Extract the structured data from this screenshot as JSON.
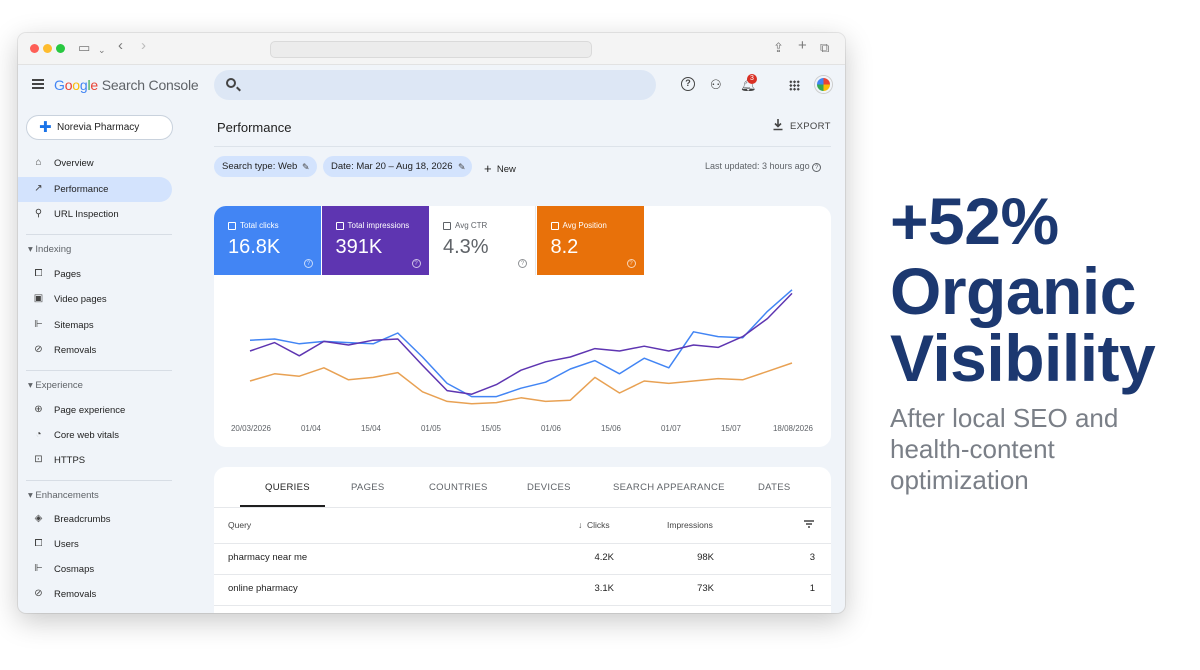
{
  "app": {
    "logo_parts": [
      "G",
      "o",
      "o",
      "g",
      "l",
      "e"
    ],
    "product_name": "Search Console",
    "notification_count": "3"
  },
  "sidebar": {
    "property": "Norevia Pharmacy",
    "items_top": [
      {
        "label": "Overview",
        "icon": "home-icon"
      },
      {
        "label": "Performance",
        "icon": "trending-icon",
        "active": true
      },
      {
        "label": "URL Inspection",
        "icon": "search-icon"
      }
    ],
    "indexing": {
      "title": "Indexing",
      "items": [
        {
          "label": "Pages",
          "icon": "pages-icon"
        },
        {
          "label": "Video pages",
          "icon": "video-icon"
        },
        {
          "label": "Sitemaps",
          "icon": "sitemap-icon"
        },
        {
          "label": "Removals",
          "icon": "removals-icon"
        }
      ]
    },
    "experience": {
      "title": "Experience",
      "items": [
        {
          "label": "Page experience",
          "icon": "plus-circle-icon"
        },
        {
          "label": "Core web vitals",
          "icon": "gauge-icon"
        },
        {
          "label": "HTTPS",
          "icon": "lock-icon"
        }
      ]
    },
    "enhancements": {
      "title": "Enhancements",
      "items": [
        {
          "label": "Breadcrumbs",
          "icon": "layers-icon"
        },
        {
          "label": "Users",
          "icon": "pages-icon"
        },
        {
          "label": "Cosmaps",
          "icon": "sitemap-icon"
        },
        {
          "label": "Removals",
          "icon": "removals-icon"
        }
      ]
    }
  },
  "main": {
    "title": "Performance",
    "export_label": "EXPORT",
    "chips": {
      "search_type": "Search type: Web",
      "date": "Date: Mar 20 – Aug 18, 2026"
    },
    "new_label": "New",
    "last_updated": "Last updated: 3 hours ago"
  },
  "metrics": [
    {
      "label": "Total clicks",
      "value": "16.8K",
      "color": "#4285f4",
      "selected": true
    },
    {
      "label": "Total impressions",
      "value": "391K",
      "color": "#5e35b1",
      "selected": true
    },
    {
      "label": "Avg CTR",
      "value": "4.3%",
      "color": "#ffffff",
      "selected": false
    },
    {
      "label": "Avg Position",
      "value": "8.2",
      "color": "#e8710a",
      "selected": true
    }
  ],
  "chart_data": {
    "type": "line",
    "x_tick_labels": [
      "20/03/2026",
      "01/04",
      "15/04",
      "01/05",
      "15/05",
      "01/06",
      "15/06",
      "01/07",
      "15/07",
      "18/08/2026"
    ],
    "series": [
      {
        "color": "#4285f4",
        "values": [
          0.54,
          0.55,
          0.51,
          0.53,
          0.52,
          0.51,
          0.6,
          0.4,
          0.18,
          0.07,
          0.07,
          0.14,
          0.19,
          0.3,
          0.37,
          0.26,
          0.39,
          0.31,
          0.61,
          0.57,
          0.56,
          0.78,
          0.96
        ]
      },
      {
        "color": "#5e35b1",
        "values": [
          0.45,
          0.52,
          0.41,
          0.53,
          0.5,
          0.54,
          0.55,
          0.33,
          0.12,
          0.09,
          0.17,
          0.29,
          0.36,
          0.4,
          0.47,
          0.45,
          0.49,
          0.45,
          0.5,
          0.48,
          0.57,
          0.72,
          0.93
        ]
      },
      {
        "color": "#e8a153",
        "values": [
          0.2,
          0.26,
          0.24,
          0.31,
          0.21,
          0.23,
          0.27,
          0.11,
          0.03,
          0.01,
          0.02,
          0.06,
          0.03,
          0.04,
          0.23,
          0.1,
          0.2,
          0.18,
          0.2,
          0.22,
          0.21,
          0.28,
          0.35
        ]
      }
    ]
  },
  "table": {
    "tabs": [
      "QUERIES",
      "PAGES",
      "COUNTRIES",
      "DEVICES",
      "SEARCH APPEARANCE",
      "DATES"
    ],
    "headers": {
      "query": "Query",
      "clicks": "Clicks",
      "impressions": "Impressions"
    },
    "rows": [
      {
        "query": "pharmacy near me",
        "clicks": "4.2K",
        "impressions": "98K",
        "position": "3"
      },
      {
        "query": "online pharmacy",
        "clicks": "3.1K",
        "impressions": "73K",
        "position": "1"
      }
    ]
  },
  "promo": {
    "line1": "+52%",
    "line2": "Organic",
    "line3": "Visibility",
    "subtitle": "After local SEO and health-content optimization"
  }
}
